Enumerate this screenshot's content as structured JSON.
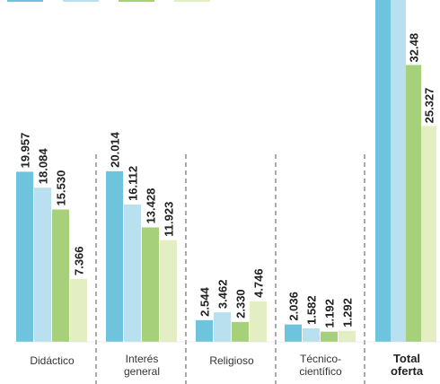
{
  "chart_data": {
    "type": "bar",
    "categories": [
      [
        "Didáctico"
      ],
      [
        "Interés",
        "general"
      ],
      [
        "Religioso"
      ],
      [
        "Técnico-",
        "científico"
      ],
      [
        "Total",
        "oferta"
      ]
    ],
    "series_colors": [
      "#6dc4dc",
      "#b9e0ef",
      "#a6d17a",
      "#e3eec2"
    ],
    "series": [
      {
        "values": [
          19957,
          20014,
          2544,
          2036,
          null
        ]
      },
      {
        "values": [
          18084,
          16112,
          3462,
          1582,
          null
        ]
      },
      {
        "values": [
          15530,
          13428,
          2330,
          1192,
          32480
        ]
      },
      {
        "values": [
          7366,
          11923,
          4746,
          1292,
          25327
        ]
      }
    ],
    "value_labels": [
      [
        "19.957",
        "20.014",
        "2.544",
        "2.036",
        ""
      ],
      [
        "18.084",
        "16.112",
        "3.462",
        "1.582",
        ""
      ],
      [
        "15.530",
        "13.428",
        "2.330",
        "1.192",
        "32.48"
      ],
      [
        "7.366",
        "11.923",
        "4.746",
        "1.292",
        "25.327"
      ]
    ],
    "ylim": [
      0,
      50000
    ],
    "grid": false,
    "legend": "top-left (clipped)"
  }
}
